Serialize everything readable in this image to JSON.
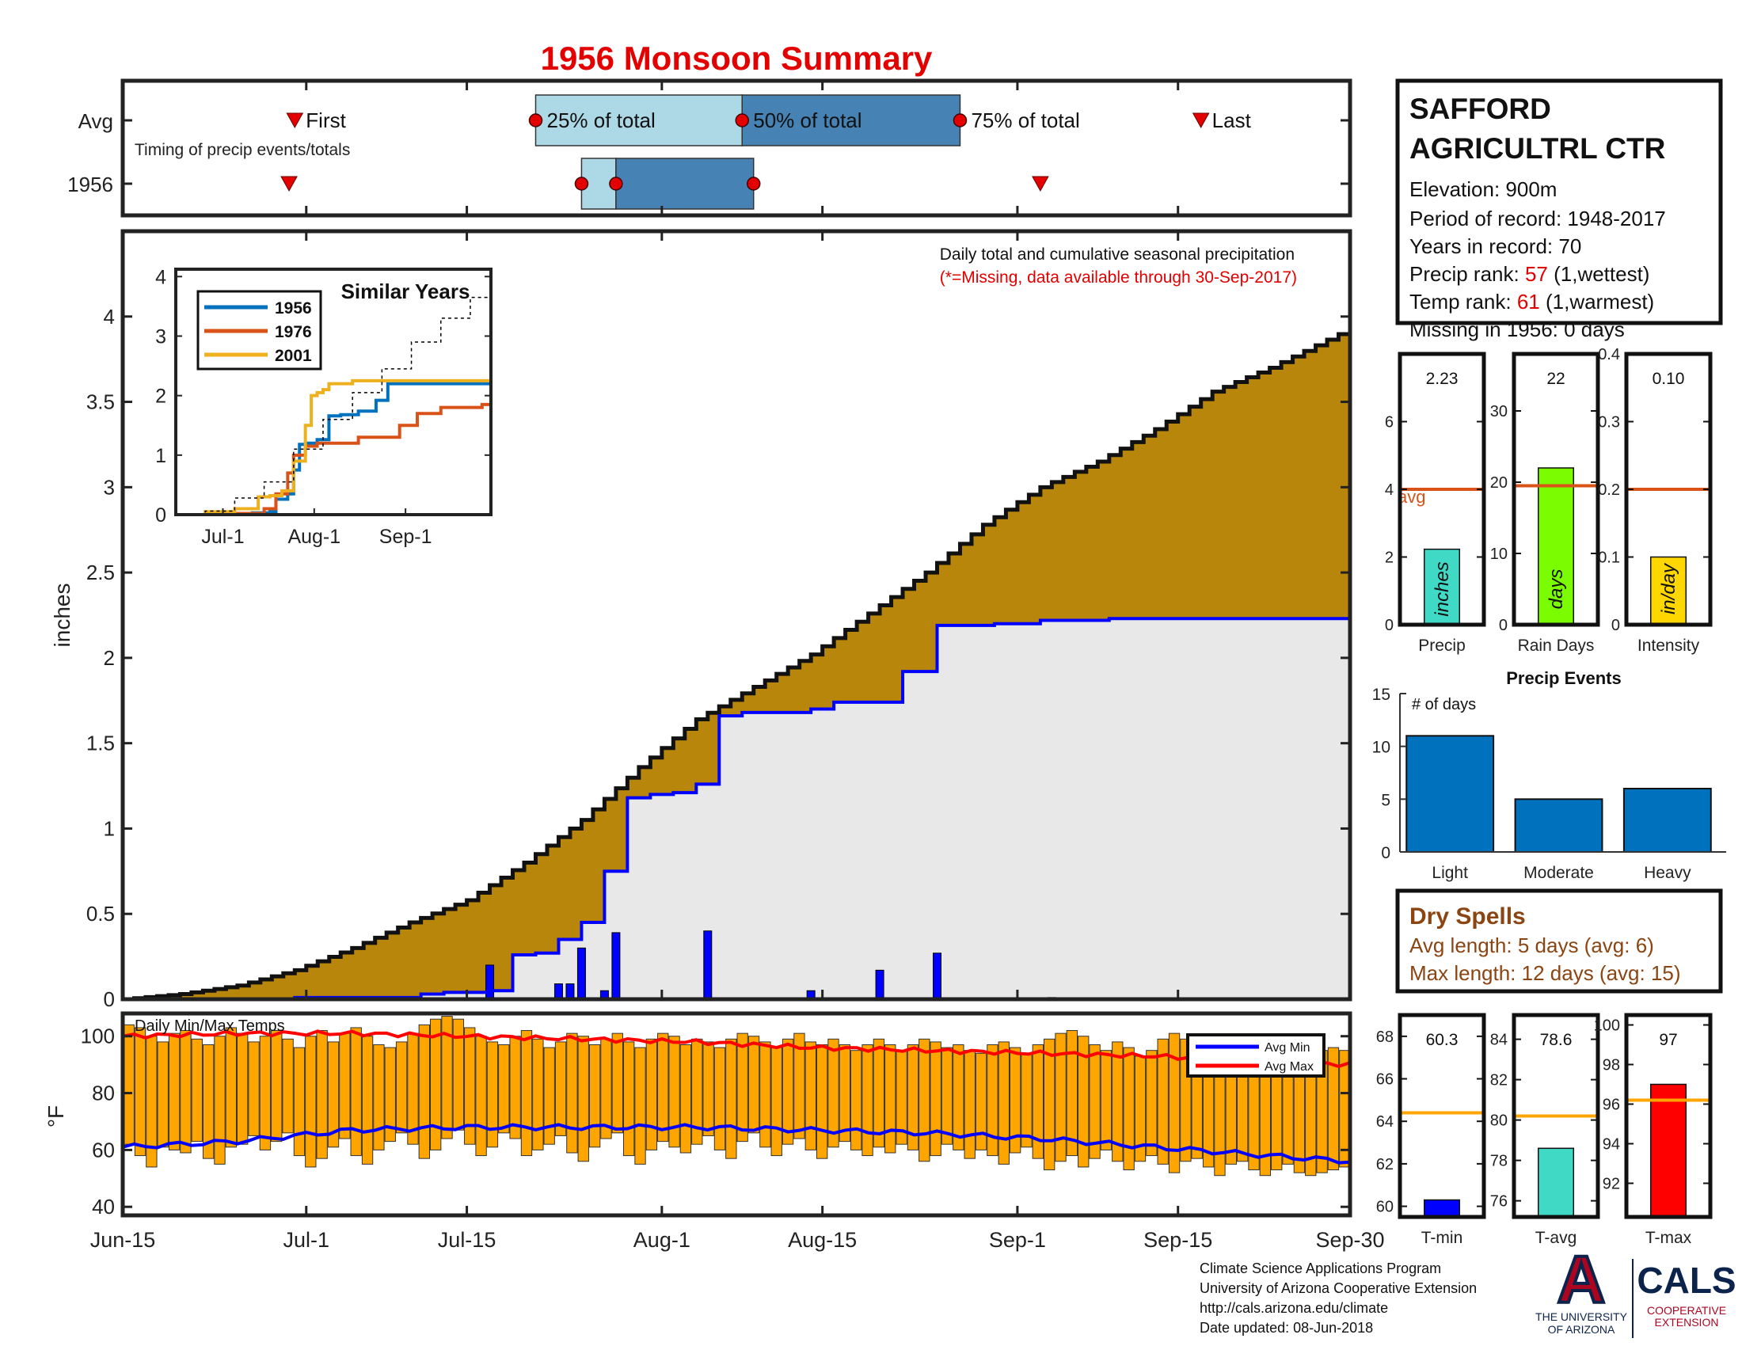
{
  "title": "1956 Monsoon Summary",
  "timing": {
    "avg_label": "Avg",
    "year_label": "1956",
    "caption": "Timing of precip events/totals",
    "first_label": "First",
    "last_label": "Last",
    "pct25_label": "25% of total",
    "pct50_label": "50% of total",
    "pct75_label": "75% of total",
    "x_range_days": [
      0,
      107
    ],
    "avg": {
      "first": 15,
      "p25": 36,
      "p50": 54,
      "p75": 73,
      "last": 94
    },
    "year": {
      "first": 14.5,
      "p25": 40,
      "p50": 43,
      "p75": 55,
      "last": 80
    }
  },
  "station": {
    "name_line1": "SAFFORD",
    "name_line2": "AGRICULTRL CTR",
    "elevation": "Elevation: 900m",
    "period": "Period of record: 1948-2017",
    "years": "Years in record: 70",
    "precip_rank_prefix": "Precip rank: ",
    "precip_rank_value": "57",
    "precip_rank_suffix": " (1,wettest)",
    "temp_rank_prefix": "Temp rank: ",
    "temp_rank_value": "61",
    "temp_rank_suffix": " (1,warmest)",
    "missing": "Missing in 1956: 0 days"
  },
  "main_chart": {
    "ylabel": "inches",
    "note": "Daily total and cumulative seasonal precipitation",
    "missing_note": "(*=Missing, data available through 30-Sep-2017)",
    "x_ticks": [
      "Jun-15",
      "Jul-1",
      "Jul-15",
      "Aug-1",
      "Aug-15",
      "Sep-1",
      "Sep-15",
      "Sep-30"
    ],
    "x_tick_days": [
      0,
      16,
      30,
      47,
      61,
      78,
      92,
      107
    ],
    "y_ticks": [
      "0",
      "0.5",
      "1",
      "1.5",
      "2",
      "2.5",
      "3",
      "3.5",
      "4"
    ],
    "y_tick_values": [
      0,
      0.5,
      1,
      1.5,
      2,
      2.5,
      3,
      3.5,
      4
    ],
    "ylim": [
      0,
      4.5
    ]
  },
  "chart_data": [
    {
      "type": "area",
      "name": "cumulative-precip",
      "x_unit": "days since Jun-15",
      "avg_cumulative_x": [
        0,
        5,
        10,
        15,
        20,
        25,
        30,
        35,
        40,
        45,
        50,
        55,
        60,
        65,
        70,
        75,
        80,
        85,
        90,
        95,
        100,
        107
      ],
      "avg_cumulative_y": [
        0,
        0.03,
        0.08,
        0.17,
        0.3,
        0.45,
        0.58,
        0.8,
        1.05,
        1.36,
        1.64,
        1.83,
        2.02,
        2.26,
        2.5,
        2.78,
        3.0,
        3.15,
        3.34,
        3.56,
        3.7,
        3.93
      ],
      "year_cumulative_x": [
        0,
        15,
        26,
        28,
        32,
        34,
        36,
        38,
        40,
        42,
        44,
        46,
        48,
        50,
        52,
        54,
        56,
        60,
        62,
        65,
        68,
        71,
        76,
        80,
        86,
        107
      ],
      "year_cumulative_y": [
        0,
        0.01,
        0.03,
        0.04,
        0.05,
        0.26,
        0.27,
        0.35,
        0.45,
        0.75,
        1.18,
        1.2,
        1.21,
        1.26,
        1.66,
        1.68,
        1.68,
        1.7,
        1.74,
        1.74,
        1.92,
        2.19,
        2.2,
        2.22,
        2.23,
        2.23
      ],
      "daily_x": [
        32,
        38,
        39,
        40,
        42,
        43,
        51,
        60,
        66,
        71,
        81
      ],
      "daily_y": [
        0.2,
        0.09,
        0.09,
        0.3,
        0.05,
        0.39,
        0.4,
        0.05,
        0.17,
        0.27,
        0.01
      ]
    },
    {
      "type": "line",
      "name": "similar-years",
      "title": "Similar Years",
      "x_ticks": [
        "Jul-1",
        "Aug-1",
        "Sep-1"
      ],
      "x_tick_days": [
        16,
        47,
        78
      ],
      "y_ticks": [
        "0",
        "1",
        "2",
        "3",
        "4"
      ],
      "ylim": [
        0,
        4
      ],
      "series": [
        {
          "name": "1956",
          "color": "#0072BD",
          "x": [
            0,
            26,
            32,
            34,
            38,
            40,
            42,
            44,
            48,
            52,
            56,
            62,
            68,
            72,
            107
          ],
          "y": [
            0,
            0.03,
            0.05,
            0.26,
            0.35,
            0.75,
            1.18,
            1.2,
            1.26,
            1.66,
            1.68,
            1.74,
            1.92,
            2.2,
            2.23
          ]
        },
        {
          "name": "1976",
          "color": "#D95319",
          "x": [
            0,
            20,
            30,
            34,
            38,
            40,
            44,
            48,
            56,
            62,
            72,
            76,
            82,
            90,
            95,
            104,
            107
          ],
          "y": [
            0,
            0.02,
            0.1,
            0.35,
            0.7,
            1.0,
            1.15,
            1.2,
            1.2,
            1.3,
            1.3,
            1.5,
            1.7,
            1.8,
            1.8,
            1.85,
            2.1
          ]
        },
        {
          "name": "2001",
          "color": "#EDB120",
          "x": [
            0,
            10,
            20,
            28,
            32,
            36,
            40,
            44,
            46,
            48,
            50,
            52,
            56,
            60,
            107
          ],
          "y": [
            0,
            0.05,
            0.1,
            0.3,
            0.32,
            0.4,
            0.9,
            1.5,
            2.0,
            2.05,
            2.1,
            2.2,
            2.2,
            2.25,
            2.25
          ]
        },
        {
          "name": "",
          "color": "#000000",
          "dashed": true,
          "x": [
            0,
            10,
            20,
            30,
            40,
            50,
            60,
            70,
            80,
            90,
            100,
            107
          ],
          "y": [
            0,
            0.06,
            0.28,
            0.55,
            1.1,
            1.6,
            2.05,
            2.45,
            2.9,
            3.3,
            3.65,
            3.95
          ]
        }
      ]
    },
    {
      "type": "bar",
      "name": "daily-temps",
      "title": "Daily Min/Max Temps",
      "ylabel": "°F",
      "y_ticks": [
        "40",
        "60",
        "80",
        "100"
      ],
      "y_tick_values": [
        40,
        60,
        80,
        100
      ],
      "ylim": [
        37,
        108
      ],
      "legend": [
        "Avg Min",
        "Avg Max"
      ],
      "avg_min_x": [
        0,
        10,
        20,
        30,
        40,
        50,
        60,
        70,
        80,
        90,
        100,
        107
      ],
      "avg_min_y": [
        61,
        63,
        67,
        68,
        68,
        68,
        67,
        66,
        64,
        61,
        58,
        56
      ],
      "avg_max_x": [
        0,
        10,
        20,
        30,
        40,
        50,
        60,
        70,
        80,
        90,
        100,
        107
      ],
      "avg_max_y": [
        100,
        101,
        101,
        100,
        99,
        98,
        96,
        95,
        94,
        93,
        91,
        90
      ],
      "day_min": [
        62,
        58,
        54,
        61,
        60,
        59,
        63,
        57,
        55,
        61,
        62,
        65,
        60,
        63,
        66,
        58,
        54,
        57,
        61,
        64,
        58,
        55,
        60,
        63,
        66,
        62,
        57,
        60,
        64,
        67,
        62,
        58,
        61,
        66,
        64,
        58,
        60,
        62,
        65,
        59,
        56,
        61,
        64,
        66,
        58,
        55,
        60,
        63,
        61,
        59,
        62,
        65,
        60,
        57,
        63,
        66,
        61,
        58,
        62,
        64,
        60,
        57,
        61,
        63,
        60,
        58,
        61,
        59,
        62,
        60,
        56,
        58,
        62,
        60,
        57,
        60,
        58,
        55,
        59,
        61,
        57,
        53,
        56,
        58,
        54,
        57,
        60,
        56,
        53,
        56,
        58,
        55,
        52,
        56,
        57,
        54,
        51,
        55,
        56,
        53,
        51,
        53,
        55,
        52,
        51,
        52,
        53,
        54
      ],
      "day_max": [
        104,
        103,
        100,
        98,
        101,
        102,
        99,
        97,
        100,
        103,
        101,
        98,
        100,
        102,
        99,
        96,
        100,
        102,
        98,
        101,
        103,
        100,
        97,
        96,
        98,
        101,
        104,
        106,
        107,
        106,
        103,
        100,
        98,
        97,
        100,
        102,
        99,
        96,
        98,
        101,
        100,
        97,
        99,
        101,
        98,
        96,
        99,
        101,
        100,
        97,
        99,
        98,
        96,
        99,
        101,
        100,
        98,
        96,
        99,
        101,
        98,
        97,
        99,
        97,
        95,
        97,
        99,
        97,
        95,
        97,
        99,
        98,
        96,
        97,
        95,
        94,
        97,
        98,
        96,
        94,
        97,
        99,
        101,
        102,
        100,
        97,
        95,
        98,
        96,
        93,
        95,
        99,
        101,
        99,
        96,
        94,
        97,
        99,
        100,
        98,
        96,
        94,
        97,
        99,
        97,
        95,
        96,
        95
      ]
    },
    {
      "type": "bar",
      "name": "precip-summary",
      "categories": [
        "Precip",
        "Rain Days",
        "Intensity"
      ],
      "values": [
        2.23,
        22,
        0.1
      ],
      "value_labels": [
        "2.23",
        "22",
        "0.10"
      ],
      "units": [
        "inches",
        "days",
        "in/day"
      ],
      "averages": [
        4.0,
        19.5,
        0.2
      ],
      "avg_label": "avg",
      "ylims": [
        [
          0,
          8
        ],
        [
          0,
          38
        ],
        [
          0,
          0.4
        ]
      ],
      "y_ticks": [
        [
          "0",
          "2",
          "4",
          "6"
        ],
        [
          "0",
          "10",
          "20",
          "30"
        ],
        [
          "0",
          "0.1",
          "0.2",
          "0.3",
          "0.4"
        ]
      ],
      "y_tick_values": [
        [
          0,
          2,
          4,
          6
        ],
        [
          0,
          10,
          20,
          30
        ],
        [
          0,
          0.1,
          0.2,
          0.3,
          0.4
        ]
      ],
      "colors": [
        "#3FD9C5",
        "#7CFC00",
        "#FFD700"
      ]
    },
    {
      "type": "bar",
      "name": "precip-events",
      "title": "Precip Events",
      "ylabel": "# of days",
      "categories": [
        "Light",
        "Moderate",
        "Heavy"
      ],
      "values": [
        11,
        5,
        6
      ],
      "ylim": [
        0,
        15
      ],
      "y_ticks": [
        "0",
        "5",
        "10",
        "15"
      ],
      "y_tick_values": [
        0,
        5,
        10,
        15
      ],
      "color": "#0072BD"
    },
    {
      "type": "bar",
      "name": "temp-summary",
      "categories": [
        "T-min",
        "T-avg",
        "T-max"
      ],
      "values": [
        60.3,
        78.6,
        97
      ],
      "value_labels": [
        "60.3",
        "78.6",
        "97"
      ],
      "averages": [
        64.4,
        80.2,
        96.2
      ],
      "ylims": [
        [
          59.5,
          69
        ],
        [
          75.2,
          85.2
        ],
        [
          90.3,
          100.5
        ]
      ],
      "y_ticks": [
        [
          "60",
          "62",
          "64",
          "66",
          "68"
        ],
        [
          "76",
          "78",
          "80",
          "82",
          "84"
        ],
        [
          "92",
          "94",
          "96",
          "98",
          "100"
        ]
      ],
      "y_tick_values": [
        [
          60,
          62,
          64,
          66,
          68
        ],
        [
          76,
          78,
          80,
          82,
          84
        ],
        [
          92,
          94,
          96,
          98,
          100
        ]
      ],
      "colors": [
        "#0000FF",
        "#3FD9C5",
        "#FF0000"
      ]
    }
  ],
  "dry_spells": {
    "title": "Dry Spells",
    "avg_length": "Avg length: 5 days (avg: 6)",
    "max_length": "Max length: 12 days (avg: 15)"
  },
  "footer": {
    "line1": "Climate Science Applications Program",
    "line2": "University of Arizona Cooperative Extension",
    "line3": "http://cals.arizona.edu/climate",
    "line4": " Date updated: 08-Jun-2018"
  },
  "logos": {
    "ua_letter": "A",
    "ua_line1": "THE UNIVERSITY",
    "ua_line2": "OF ARIZONA",
    "cals": "CALS",
    "cals_line1": "COOPERATIVE",
    "cals_line2": "EXTENSION",
    "navy": "#0C234B",
    "red": "#AB0520"
  },
  "colors": {
    "title_red": "#E30000",
    "rank_red": "#E30000",
    "brown_fill": "#B8860B",
    "year_fill": "#E8E8E8",
    "light_blue": "#ADD8E6",
    "steel_blue": "#4682B4",
    "temp_orange": "#FFA500",
    "dry_brown": "#8B4513",
    "avg_line": "#D95319"
  }
}
